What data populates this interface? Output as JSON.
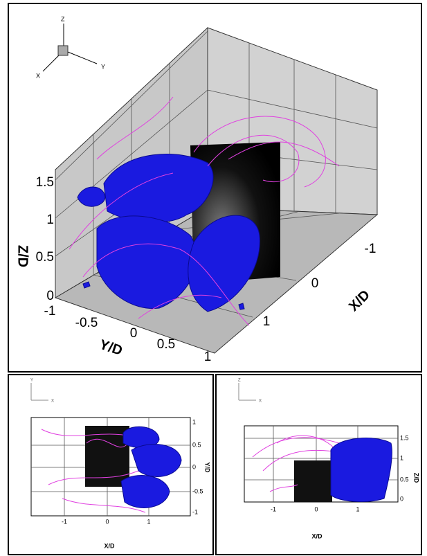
{
  "main_view": {
    "triad": {
      "x": "X",
      "y": "Y",
      "z": "Z"
    },
    "z_axis": {
      "label": "Z/D",
      "ticks": [
        "0",
        "0.5",
        "1",
        "1.5"
      ]
    },
    "y_axis": {
      "label": "Y/D",
      "ticks": [
        "-1",
        "-0.5",
        "0",
        "0.5",
        "1"
      ]
    },
    "x_axis": {
      "label": "X/D",
      "ticks": [
        "-1",
        "0",
        "1"
      ]
    }
  },
  "top_view": {
    "triad": {
      "x": "X",
      "y": "Y"
    },
    "x_axis": {
      "label": "X/D",
      "ticks": [
        "-1",
        "0",
        "1"
      ]
    },
    "y_axis": {
      "label": "Y/D",
      "ticks": [
        "1",
        "0.5",
        "0",
        "-0.5",
        "-1"
      ]
    }
  },
  "side_view": {
    "triad": {
      "x": "X",
      "z": "Z"
    },
    "x_axis": {
      "label": "X/D",
      "ticks": [
        "-1",
        "0",
        "1"
      ]
    },
    "z_axis": {
      "label": "Z/D",
      "ticks": [
        "1.5",
        "1",
        "0.5",
        "0"
      ]
    }
  }
}
